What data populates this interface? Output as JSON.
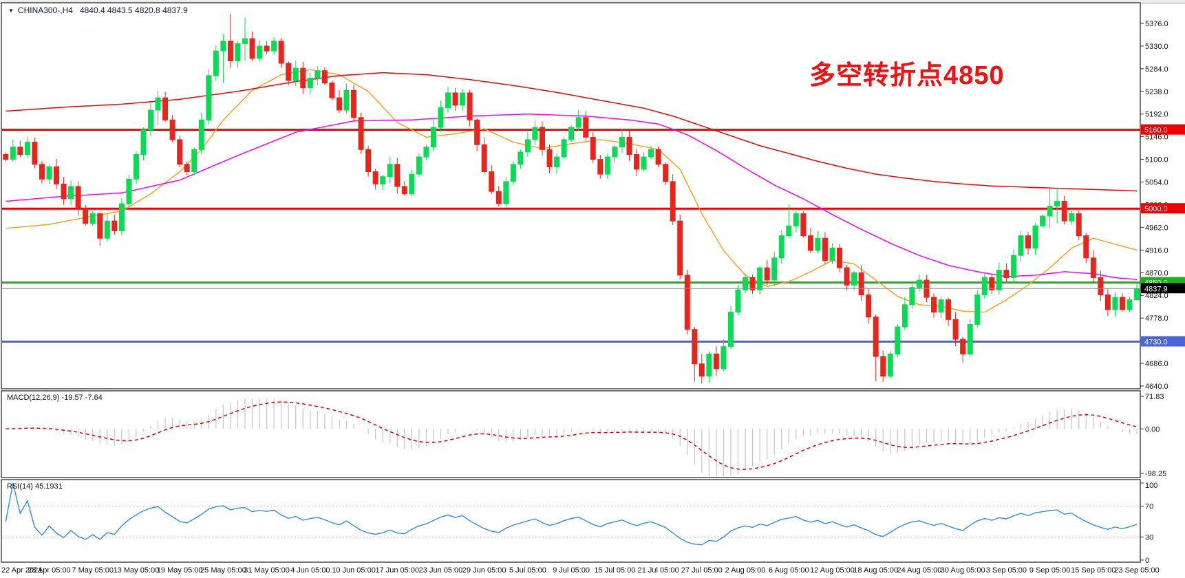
{
  "window": {
    "title_symbol": "CHINA300-,H4",
    "title_values": "4840.4 4843.5 4820.8 4837.9"
  },
  "annotation": {
    "text": "多空转折点4850",
    "color": "#f20f0f"
  },
  "colors": {
    "background": "#ffffff",
    "panel_border": "#3c3c3c",
    "axis_text": "#111111",
    "candle_up": "#0adb55",
    "candle_down": "#e6261c",
    "ma_fast": "#ffa01e",
    "ma_medium": "#ff00ff",
    "ma_slow": "#f50000",
    "hline_red": "#ee0000",
    "hline_green": "#19b219",
    "hline_blue": "#4765d6",
    "current_price_line": "#8e8e8e",
    "macd_histogram": "#c8c8c8",
    "macd_signal": "#e00000",
    "rsi_line": "#2d8ce8"
  },
  "chart_data": {
    "type": "candlestick",
    "symbol": "CHINA300-",
    "timeframe": "H4",
    "title": "CHINA300-,H4 4840.4 4843.5 4820.8 4837.9",
    "x_labels": [
      "22 Apr 2021",
      "28 Apr 05:00",
      "7 May 05:00",
      "13 May 05:00",
      "19 May 05:00",
      "25 May 05:00",
      "31 May 05:00",
      "4 Jun 05:00",
      "10 Jun 05:00",
      "17 Jun 05:00",
      "23 Jun 05:00",
      "29 Jun 05:00",
      "5 Jul 05:00",
      "9 Jul 05:00",
      "15 Jul 05:00",
      "21 Jul 05:00",
      "27 Jul 05:00",
      "2 Aug 05:00",
      "6 Aug 05:00",
      "12 Aug 05:00",
      "18 Aug 05:00",
      "24 Aug 05:00",
      "30 Aug 05:00",
      "3 Sep 05:00",
      "9 Sep 05:00",
      "15 Sep 05:00",
      "23 Sep 05:00"
    ],
    "candles_per_x_label": 6,
    "price_axis": {
      "min": 4640.0,
      "max": 5376.0,
      "tick_step": 46.0,
      "decimals": 1,
      "ticks": [
        4640.0,
        4686.0,
        4732.0,
        4778.0,
        4824.0,
        4870.0,
        4916.0,
        4962.0,
        5008.0,
        5054.0,
        5100.0,
        5146.0,
        5192.0,
        5238.0,
        5284.0,
        5330.0,
        5376.0
      ]
    },
    "first_open": 5110,
    "closes": [
      5100,
      5125,
      5110,
      5135,
      5090,
      5060,
      5085,
      5050,
      5020,
      5045,
      5000,
      4970,
      4990,
      4940,
      4975,
      4955,
      5010,
      5060,
      5110,
      5160,
      5200,
      5225,
      5180,
      5140,
      5090,
      5075,
      5120,
      5180,
      5270,
      5320,
      5340,
      5300,
      5335,
      5345,
      5305,
      5330,
      5320,
      5340,
      5295,
      5260,
      5285,
      5245,
      5265,
      5280,
      5255,
      5225,
      5200,
      5240,
      5185,
      5120,
      5075,
      5050,
      5065,
      5090,
      5045,
      5030,
      5070,
      5105,
      5125,
      5165,
      5205,
      5235,
      5210,
      5235,
      5180,
      5130,
      5075,
      5035,
      5010,
      5055,
      5090,
      5115,
      5140,
      5165,
      5120,
      5085,
      5105,
      5140,
      5165,
      5185,
      5145,
      5100,
      5070,
      5105,
      5125,
      5145,
      5110,
      5080,
      5105,
      5120,
      5090,
      5055,
      4975,
      4865,
      4755,
      4685,
      4660,
      4705,
      4675,
      4720,
      4790,
      4835,
      4860,
      4835,
      4880,
      4855,
      4900,
      4945,
      4965,
      4990,
      4945,
      4915,
      4940,
      4895,
      4920,
      4880,
      4845,
      4870,
      4825,
      4780,
      4700,
      4660,
      4705,
      4760,
      4805,
      4840,
      4855,
      4820,
      4790,
      4815,
      4775,
      4735,
      4705,
      4765,
      4825,
      4860,
      4835,
      4875,
      4860,
      4905,
      4945,
      4920,
      4965,
      4985,
      5005,
      5015,
      4975,
      4990,
      4945,
      4900,
      4860,
      4825,
      4795,
      4820,
      4795,
      4815,
      4837.9
    ],
    "wick_overrides": {
      "13": [
        4985,
        4925
      ],
      "21": [
        5238,
        5170
      ],
      "30": [
        5355,
        5255
      ],
      "31": [
        5395,
        5285
      ],
      "33": [
        5388,
        5300
      ],
      "95": [
        4760,
        4648
      ],
      "96": [
        4705,
        4645
      ],
      "108": [
        5008,
        4940
      ],
      "120": [
        4785,
        4650
      ],
      "121": [
        4712,
        4648
      ],
      "132": [
        4740,
        4688
      ],
      "144": [
        5040,
        4960
      ],
      "145": [
        5042,
        4970
      ],
      "156": [
        4848,
        4820
      ]
    },
    "hlines": [
      {
        "value": 5160.0,
        "label": "5160.0",
        "color": "#ee0000",
        "thickness": 3
      },
      {
        "value": 5000.0,
        "label": "5000.0",
        "color": "#ee0000",
        "thickness": 3
      },
      {
        "value": 4850.0,
        "label": "4850.0",
        "color": "#19b219",
        "thickness": 3
      },
      {
        "value": 4730.0,
        "label": "4730.0",
        "color": "#4765d6",
        "thickness": 3
      }
    ],
    "current_price": {
      "value": 4837.9,
      "label": "4837.9",
      "line_color": "#8e8e8e",
      "badge_bg": "#000000",
      "badge_fg": "#ffffff"
    },
    "moving_averages": [
      {
        "name": "ma-fast",
        "color": "#ffa01e",
        "points": [
          [
            0,
            4960
          ],
          [
            6,
            4968
          ],
          [
            12,
            4985
          ],
          [
            16,
            4995
          ],
          [
            20,
            5030
          ],
          [
            24,
            5075
          ],
          [
            27,
            5120
          ],
          [
            30,
            5180
          ],
          [
            34,
            5240
          ],
          [
            38,
            5272
          ],
          [
            42,
            5282
          ],
          [
            46,
            5272
          ],
          [
            50,
            5238
          ],
          [
            54,
            5175
          ],
          [
            58,
            5145
          ],
          [
            62,
            5152
          ],
          [
            66,
            5162
          ],
          [
            70,
            5135
          ],
          [
            74,
            5122
          ],
          [
            78,
            5132
          ],
          [
            82,
            5140
          ],
          [
            86,
            5132
          ],
          [
            90,
            5120
          ],
          [
            93,
            5080
          ],
          [
            96,
            4990
          ],
          [
            99,
            4915
          ],
          [
            102,
            4865
          ],
          [
            105,
            4842
          ],
          [
            108,
            4852
          ],
          [
            111,
            4872
          ],
          [
            114,
            4895
          ],
          [
            117,
            4888
          ],
          [
            120,
            4855
          ],
          [
            123,
            4822
          ],
          [
            126,
            4805
          ],
          [
            129,
            4802
          ],
          [
            132,
            4792
          ],
          [
            135,
            4790
          ],
          [
            138,
            4815
          ],
          [
            141,
            4845
          ],
          [
            144,
            4880
          ],
          [
            147,
            4920
          ],
          [
            150,
            4940
          ],
          [
            153,
            4928
          ],
          [
            156,
            4916
          ]
        ]
      },
      {
        "name": "ma-medium",
        "color": "#ff00ff",
        "points": [
          [
            0,
            5015
          ],
          [
            8,
            5025
          ],
          [
            16,
            5032
          ],
          [
            24,
            5058
          ],
          [
            32,
            5108
          ],
          [
            40,
            5155
          ],
          [
            48,
            5178
          ],
          [
            56,
            5180
          ],
          [
            64,
            5188
          ],
          [
            72,
            5192
          ],
          [
            80,
            5188
          ],
          [
            86,
            5180
          ],
          [
            90,
            5172
          ],
          [
            94,
            5150
          ],
          [
            98,
            5118
          ],
          [
            102,
            5082
          ],
          [
            106,
            5048
          ],
          [
            110,
            5020
          ],
          [
            114,
            4988
          ],
          [
            118,
            4958
          ],
          [
            122,
            4930
          ],
          [
            126,
            4905
          ],
          [
            130,
            4885
          ],
          [
            134,
            4872
          ],
          [
            138,
            4862
          ],
          [
            142,
            4865
          ],
          [
            146,
            4872
          ],
          [
            150,
            4868
          ],
          [
            153,
            4860
          ],
          [
            156,
            4856
          ]
        ]
      },
      {
        "name": "ma-slow",
        "color": "#f50000",
        "points": [
          [
            0,
            5198
          ],
          [
            8,
            5206
          ],
          [
            16,
            5212
          ],
          [
            24,
            5222
          ],
          [
            32,
            5238
          ],
          [
            40,
            5258
          ],
          [
            46,
            5270
          ],
          [
            52,
            5276
          ],
          [
            58,
            5272
          ],
          [
            64,
            5262
          ],
          [
            70,
            5250
          ],
          [
            76,
            5236
          ],
          [
            82,
            5220
          ],
          [
            88,
            5204
          ],
          [
            92,
            5188
          ],
          [
            96,
            5168
          ],
          [
            100,
            5148
          ],
          [
            104,
            5128
          ],
          [
            108,
            5112
          ],
          [
            112,
            5096
          ],
          [
            116,
            5082
          ],
          [
            120,
            5070
          ],
          [
            124,
            5062
          ],
          [
            128,
            5055
          ],
          [
            132,
            5050
          ],
          [
            136,
            5046
          ],
          [
            140,
            5044
          ],
          [
            144,
            5042
          ],
          [
            148,
            5040
          ],
          [
            152,
            5038
          ],
          [
            156,
            5036
          ]
        ]
      }
    ],
    "macd": {
      "label": "MACD(12,26,9) -19.57 -7.64",
      "fast": 12,
      "slow": 26,
      "signal": 9,
      "value": -19.57,
      "signal_value": -7.64,
      "axis_max": 71.83,
      "axis_min": -98.25,
      "axis_labels": [
        "71.83",
        "0.00",
        "-98.25"
      ]
    },
    "rsi": {
      "label": "RSI(14) 45.1931",
      "period": 14,
      "value": 45.1931,
      "axis_labels": [
        "100",
        "70",
        "30",
        "0"
      ],
      "levels": [
        70,
        30
      ]
    }
  }
}
